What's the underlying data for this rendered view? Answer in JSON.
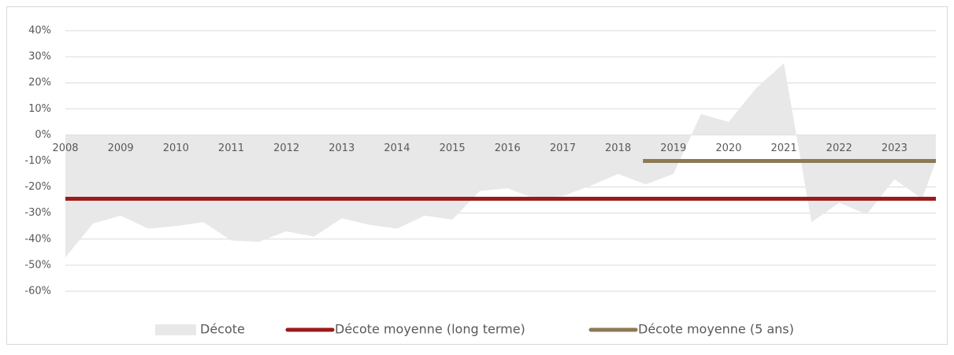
{
  "chart_data": {
    "type": "area",
    "xlim": [
      2008,
      2023.75
    ],
    "xticks": [
      2008,
      2009,
      2010,
      2011,
      2012,
      2013,
      2014,
      2015,
      2016,
      2017,
      2018,
      2019,
      2020,
      2021,
      2022,
      2023
    ],
    "ylim": [
      -60,
      40
    ],
    "yticks": [
      {
        "value": 40,
        "label": "40%"
      },
      {
        "value": 30,
        "label": "30%"
      },
      {
        "value": 20,
        "label": "20%"
      },
      {
        "value": 10,
        "label": "10%"
      },
      {
        "value": 0,
        "label": "0%"
      },
      {
        "value": -10,
        "label": "-10%"
      },
      {
        "value": -20,
        "label": "-20%"
      },
      {
        "value": -30,
        "label": "-30%"
      },
      {
        "value": -40,
        "label": "-40%"
      },
      {
        "value": -50,
        "label": "-50%"
      },
      {
        "value": -60,
        "label": "-60%"
      }
    ],
    "grid": true,
    "legend": "bottom",
    "series": [
      {
        "name": "Décote",
        "color": "#e8e8e8",
        "kind": "area",
        "x": [
          2008,
          2008.5,
          2009,
          2009.5,
          2010,
          2010.5,
          2011,
          2011.5,
          2012,
          2012.5,
          2013,
          2013.5,
          2014,
          2014.5,
          2015,
          2015.5,
          2016,
          2016.5,
          2017,
          2017.5,
          2018,
          2018.5,
          2019,
          2019.5,
          2020,
          2020.5,
          2021,
          2021.5,
          2022,
          2022.5,
          2023,
          2023.5,
          2023.75
        ],
        "values": [
          -47,
          -34,
          -31,
          -36,
          -35,
          -33.5,
          -40.5,
          -41,
          -37,
          -39,
          -32,
          -34.5,
          -36,
          -31,
          -32.5,
          -21.5,
          -20.5,
          -24.5,
          -23.5,
          -19.5,
          -15,
          -19,
          -15,
          8,
          5,
          18,
          27.5,
          -33.5,
          -26,
          -30.5,
          -17,
          -24.5,
          -10
        ]
      },
      {
        "name": "Décote moyenne (long terme)",
        "color": "#9b1b1b",
        "kind": "line",
        "x": [
          2008,
          2023.75
        ],
        "values": [
          -24.5,
          -24.5
        ]
      },
      {
        "name": "Décote moyenne (5 ans)",
        "color": "#8c7a55",
        "kind": "line",
        "x": [
          2018.45,
          2023.75
        ],
        "values": [
          -10,
          -10
        ]
      }
    ]
  }
}
